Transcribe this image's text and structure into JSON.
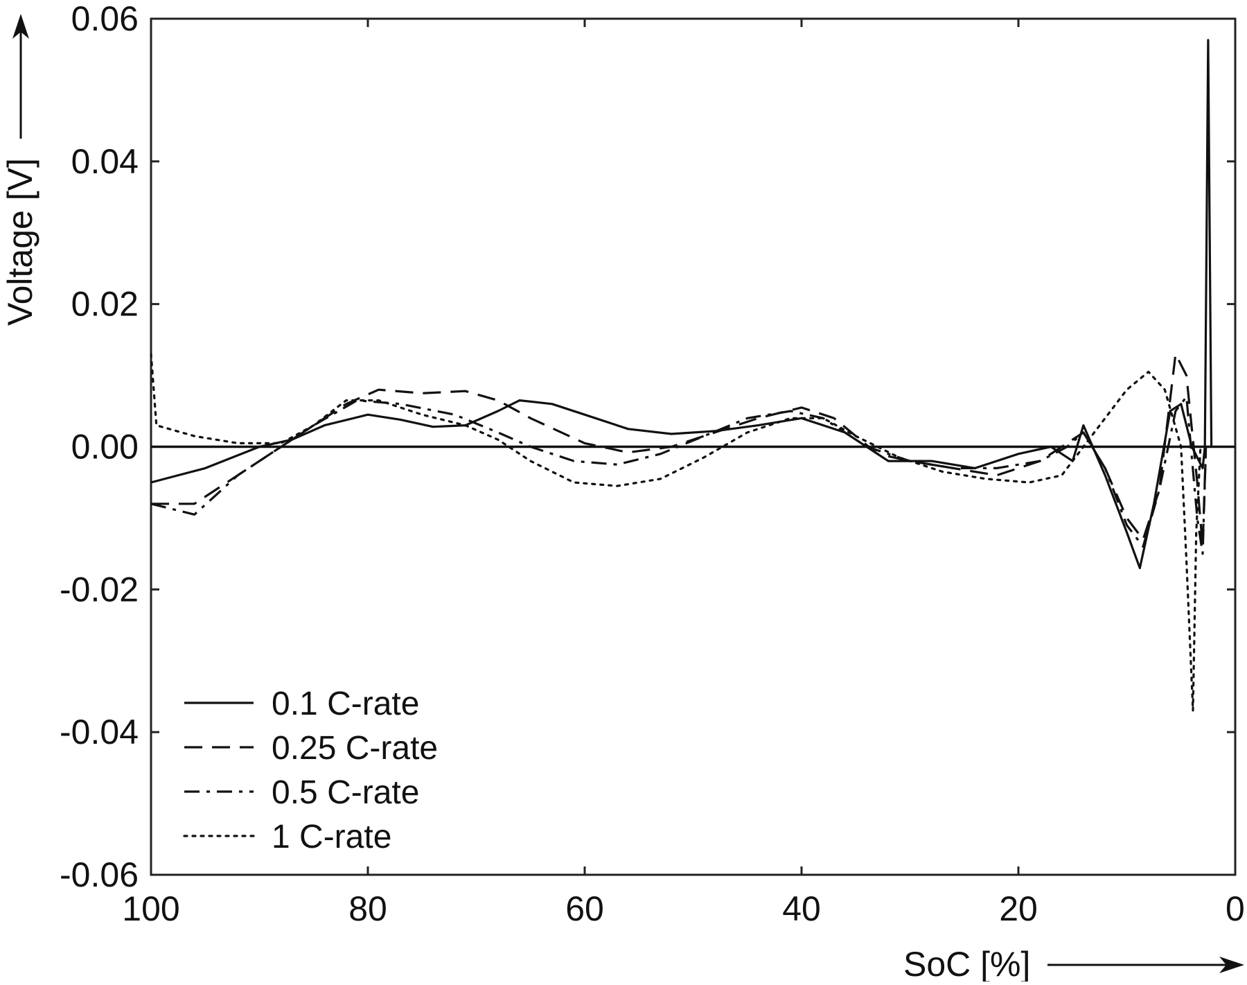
{
  "chart_data": {
    "type": "line",
    "title": "",
    "xlabel": "SoC [%]",
    "ylabel": "Voltage [V]",
    "xlim": [
      100,
      0
    ],
    "ylim": [
      -0.06,
      0.06
    ],
    "x_reversed": true,
    "xticks": [
      100,
      80,
      60,
      40,
      20,
      0
    ],
    "xtick_labels": [
      "100",
      "80",
      "60",
      "40",
      "20",
      "0"
    ],
    "yticks": [
      0.06,
      0.04,
      0.02,
      0.0,
      -0.02,
      -0.04,
      -0.06
    ],
    "ytick_labels": [
      "0.06",
      "0.04",
      "0.02",
      "0.00",
      "-0.02",
      "-0.04",
      "-0.06"
    ],
    "grid": false,
    "zero_line": true,
    "legend_position": "bottom-left",
    "colors": {
      "line": "#111111",
      "frame": "#222222"
    },
    "series": [
      {
        "name": "0.1 C-rate",
        "style": "solid",
        "points": [
          [
            100,
            -0.005
          ],
          [
            95,
            -0.003
          ],
          [
            90,
            0.0
          ],
          [
            87,
            0.001
          ],
          [
            84,
            0.003
          ],
          [
            80,
            0.0045
          ],
          [
            77,
            0.0038
          ],
          [
            74,
            0.0028
          ],
          [
            71,
            0.003
          ],
          [
            68,
            0.005
          ],
          [
            66,
            0.0065
          ],
          [
            63,
            0.006
          ],
          [
            60,
            0.0045
          ],
          [
            56,
            0.0025
          ],
          [
            52,
            0.0018
          ],
          [
            48,
            0.0022
          ],
          [
            44,
            0.003
          ],
          [
            40,
            0.004
          ],
          [
            36,
            0.002
          ],
          [
            32,
            -0.002
          ],
          [
            28,
            -0.002
          ],
          [
            24,
            -0.003
          ],
          [
            20,
            -0.001
          ],
          [
            17,
            0.0
          ],
          [
            15,
            -0.002
          ],
          [
            14,
            0.003
          ],
          [
            12,
            -0.004
          ],
          [
            10,
            -0.012
          ],
          [
            8.8,
            -0.017
          ],
          [
            7.5,
            -0.008
          ],
          [
            6,
            0.005
          ],
          [
            5,
            0.006
          ],
          [
            4,
            0.0
          ],
          [
            3,
            -0.003
          ],
          [
            2.8,
            0.0
          ],
          [
            2.5,
            0.057
          ],
          [
            2.2,
            0.0
          ]
        ]
      },
      {
        "name": "0.25 C-rate",
        "style": "dashed",
        "points": [
          [
            100,
            -0.008
          ],
          [
            96,
            -0.008
          ],
          [
            92,
            -0.004
          ],
          [
            88,
            0.0
          ],
          [
            85,
            0.003
          ],
          [
            82,
            0.006
          ],
          [
            79,
            0.008
          ],
          [
            75,
            0.0075
          ],
          [
            71,
            0.0078
          ],
          [
            68,
            0.0065
          ],
          [
            65,
            0.004
          ],
          [
            60,
            0.0005
          ],
          [
            56,
            -0.0008
          ],
          [
            52,
            0.0
          ],
          [
            48,
            0.002
          ],
          [
            44,
            0.004
          ],
          [
            40,
            0.0055
          ],
          [
            37,
            0.004
          ],
          [
            33,
            -0.001
          ],
          [
            30,
            -0.002
          ],
          [
            26,
            -0.003
          ],
          [
            22,
            -0.004
          ],
          [
            18,
            -0.002
          ],
          [
            16,
            0.0
          ],
          [
            14,
            0.002
          ],
          [
            12,
            -0.003
          ],
          [
            10,
            -0.01
          ],
          [
            8.5,
            -0.013
          ],
          [
            7,
            -0.006
          ],
          [
            5.5,
            0.013
          ],
          [
            4.5,
            0.01
          ],
          [
            3.5,
            -0.005
          ],
          [
            3,
            -0.014
          ],
          [
            2.7,
            0.0
          ]
        ]
      },
      {
        "name": "0.5 C-rate",
        "style": "dashdot",
        "points": [
          [
            100,
            -0.008
          ],
          [
            96,
            -0.0095
          ],
          [
            92,
            -0.004
          ],
          [
            88,
            0.0
          ],
          [
            85,
            0.003
          ],
          [
            81,
            0.0065
          ],
          [
            77,
            0.006
          ],
          [
            72,
            0.0045
          ],
          [
            68,
            0.002
          ],
          [
            65,
            0.0
          ],
          [
            61,
            -0.002
          ],
          [
            57,
            -0.0025
          ],
          [
            53,
            -0.001
          ],
          [
            49,
            0.0015
          ],
          [
            45,
            0.004
          ],
          [
            41,
            0.005
          ],
          [
            38,
            0.004
          ],
          [
            34,
            0.0
          ],
          [
            30,
            -0.002
          ],
          [
            26,
            -0.003
          ],
          [
            22,
            -0.003
          ],
          [
            18,
            -0.002
          ],
          [
            15.5,
            0.0
          ],
          [
            14,
            0.002
          ],
          [
            12,
            -0.003
          ],
          [
            10,
            -0.011
          ],
          [
            8.5,
            -0.014
          ],
          [
            7,
            -0.006
          ],
          [
            5.5,
            0.005
          ],
          [
            4.5,
            0.007
          ],
          [
            3.5,
            -0.01
          ],
          [
            3,
            -0.015
          ],
          [
            2.7,
            0.0
          ]
        ]
      },
      {
        "name": "1 C-rate",
        "style": "dotted",
        "points": [
          [
            100,
            0.013
          ],
          [
            99.5,
            0.003
          ],
          [
            96,
            0.0015
          ],
          [
            92,
            0.0005
          ],
          [
            88,
            0.0005
          ],
          [
            85,
            0.003
          ],
          [
            82,
            0.0065
          ],
          [
            79,
            0.0065
          ],
          [
            75,
            0.0045
          ],
          [
            71,
            0.003
          ],
          [
            68,
            0.001
          ],
          [
            65,
            -0.002
          ],
          [
            61,
            -0.005
          ],
          [
            57,
            -0.0055
          ],
          [
            53,
            -0.0045
          ],
          [
            49,
            -0.0015
          ],
          [
            45,
            0.002
          ],
          [
            41,
            0.004
          ],
          [
            38,
            0.004
          ],
          [
            35,
            0.0015
          ],
          [
            31,
            -0.0015
          ],
          [
            27,
            -0.0035
          ],
          [
            23,
            -0.0045
          ],
          [
            19,
            -0.005
          ],
          [
            16,
            -0.004
          ],
          [
            14,
            0.0
          ],
          [
            12,
            0.004
          ],
          [
            10,
            0.008
          ],
          [
            8,
            0.0105
          ],
          [
            6.5,
            0.008
          ],
          [
            5,
            0.0
          ],
          [
            4.5,
            -0.016
          ],
          [
            3.9,
            -0.037
          ],
          [
            3.6,
            -0.012
          ],
          [
            3.2,
            0.0
          ]
        ]
      }
    ]
  }
}
